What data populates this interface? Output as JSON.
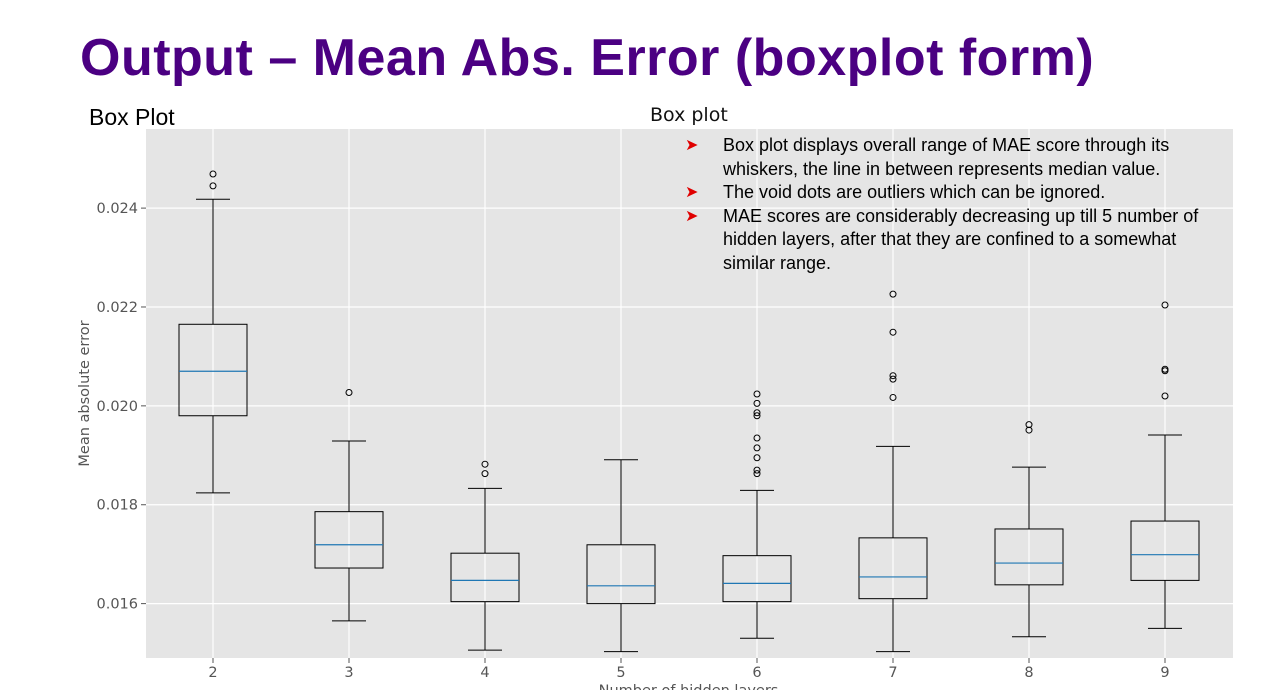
{
  "slide": {
    "title": "Output – Mean Abs. Error (boxplot form)",
    "left_label": "Box Plot"
  },
  "notes": {
    "bullets": [
      "Box plot displays overall range of MAE score through its whiskers, the line in between represents median value.",
      "The void dots are outliers which can be ignored.",
      "MAE scores are considerably decreasing up till 5 number of hidden layers, after that they are confined to a somewhat similar range."
    ],
    "bullet_icon": "arrowhead-icon",
    "bullet_color": "#e00000"
  },
  "chart_data": {
    "type": "box",
    "title": "Box plot",
    "xlabel": "Number of hidden layers",
    "ylabel": "Mean absolute error",
    "grid": true,
    "background": "#e5e5e5",
    "median_color": "#1f77b4",
    "ylim": [
      0.0149,
      0.0256
    ],
    "yticks": [
      "0.016",
      "0.018",
      "0.020",
      "0.022",
      "0.024"
    ],
    "categories": [
      "2",
      "3",
      "4",
      "5",
      "6",
      "7",
      "8",
      "9"
    ],
    "boxes": [
      {
        "label": "2",
        "whislo": 0.01824,
        "q1": 0.0198,
        "med": 0.0207,
        "q3": 0.02165,
        "whishi": 0.02418,
        "fliers": [
          0.02445,
          0.02469
        ]
      },
      {
        "label": "3",
        "whislo": 0.01565,
        "q1": 0.01672,
        "med": 0.01719,
        "q3": 0.01786,
        "whishi": 0.01929,
        "fliers": [
          0.02027
        ]
      },
      {
        "label": "4",
        "whislo": 0.01506,
        "q1": 0.01604,
        "med": 0.01647,
        "q3": 0.01702,
        "whishi": 0.01833,
        "fliers": [
          0.01863,
          0.01882
        ]
      },
      {
        "label": "5",
        "whislo": 0.01503,
        "q1": 0.016,
        "med": 0.01636,
        "q3": 0.01719,
        "whishi": 0.01891,
        "fliers": []
      },
      {
        "label": "6",
        "whislo": 0.0153,
        "q1": 0.01604,
        "med": 0.01641,
        "q3": 0.01697,
        "whishi": 0.01829,
        "fliers": [
          0.01863,
          0.0187,
          0.01895,
          0.01915,
          0.01935,
          0.0198,
          0.01986,
          0.02005,
          0.02024
        ]
      },
      {
        "label": "7",
        "whislo": 0.01503,
        "q1": 0.0161,
        "med": 0.01654,
        "q3": 0.01733,
        "whishi": 0.01918,
        "fliers": [
          0.02017,
          0.02054,
          0.02061,
          0.02149,
          0.02226
        ]
      },
      {
        "label": "8",
        "whislo": 0.01533,
        "q1": 0.01638,
        "med": 0.01682,
        "q3": 0.01751,
        "whishi": 0.01876,
        "fliers": [
          0.01951,
          0.01962
        ]
      },
      {
        "label": "9",
        "whislo": 0.0155,
        "q1": 0.01647,
        "med": 0.01699,
        "q3": 0.01767,
        "whishi": 0.01941,
        "fliers": [
          0.0202,
          0.02071,
          0.02074,
          0.02204
        ]
      }
    ]
  }
}
